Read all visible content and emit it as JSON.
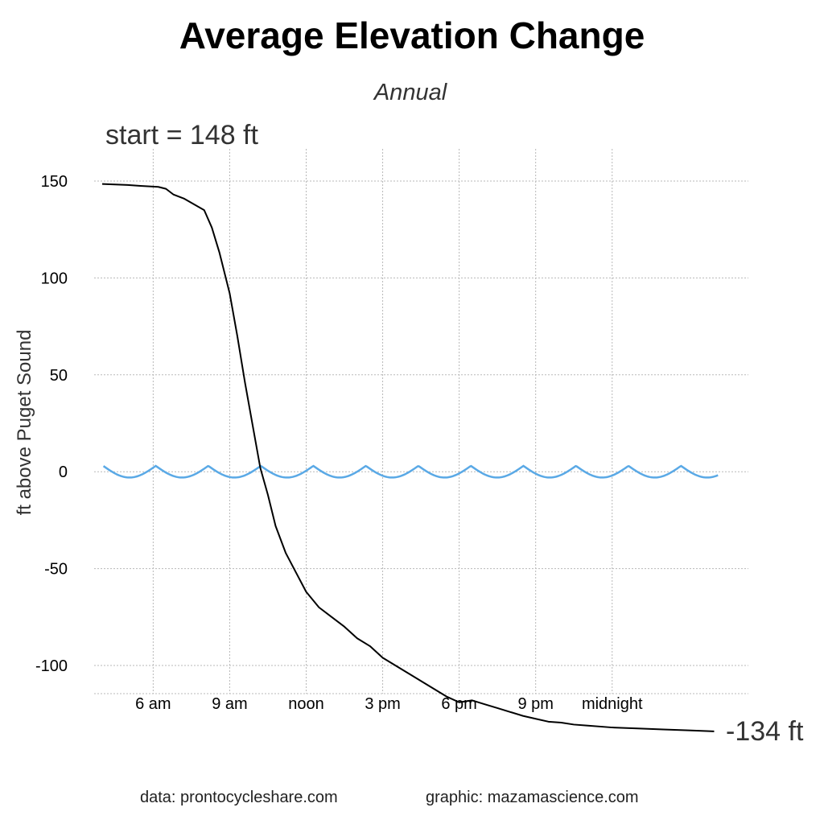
{
  "chart_data": {
    "type": "line",
    "title": "Average Elevation Change",
    "subtitle": "Annual",
    "ylabel": "ft above Puget Sound",
    "ylim": [
      -115,
      162
    ],
    "yticks": [
      150,
      100,
      50,
      0,
      -50,
      -100
    ],
    "x_tick_labels": [
      "6 am",
      "9 am",
      "noon",
      "3 pm",
      "6 pm",
      "9 pm",
      "midnight"
    ],
    "x_tick_hours": [
      6,
      9,
      12,
      15,
      18,
      21,
      24
    ],
    "xlim": [
      4,
      28.3
    ],
    "grid": true,
    "start_label": "start = 148 ft",
    "end_label": "-134 ft",
    "series": [
      {
        "color": "#000000",
        "x": [
          4,
          5,
          5.5,
          6.2,
          6.5,
          6.8,
          7.2,
          7.6,
          8.0,
          8.3,
          8.6,
          9.0,
          9.3,
          9.6,
          9.9,
          10.2,
          10.5,
          10.8,
          11.2,
          11.6,
          12.0,
          12.5,
          13.0,
          13.5,
          14.0,
          14.5,
          15.0,
          15.5,
          16.0,
          16.5,
          17.0,
          17.5,
          18.0,
          18.5,
          19.0,
          19.5,
          20.0,
          20.5,
          21.0,
          21.5,
          22.0,
          22.5,
          23.0,
          24.0,
          25.0,
          26.0,
          27.0,
          28.0
        ],
        "y": [
          148.5,
          148,
          147.5,
          147,
          146,
          143,
          141,
          138,
          135,
          126,
          113,
          92,
          70,
          46,
          24,
          2,
          -12,
          -28,
          -42,
          -52,
          -62,
          -70,
          -75,
          -80,
          -86,
          -90,
          -96,
          -100,
          -104,
          -108,
          -112,
          -116,
          -119,
          -118,
          -120,
          -122,
          -124,
          -126,
          -127.5,
          -129,
          -129.5,
          -130.5,
          -131,
          -132,
          -132.5,
          -133,
          -133.5,
          -134
        ]
      },
      {
        "color": "#5aa9e6",
        "wave": true,
        "x_start": 4.05,
        "x_end": 28.15,
        "period_hours": 2.06,
        "amplitude": 3,
        "first_peak_hour": 6.1
      }
    ]
  },
  "footer": {
    "data_source": "data:  prontocycleshare.com",
    "graphic_source": "graphic:  mazamascience.com"
  }
}
